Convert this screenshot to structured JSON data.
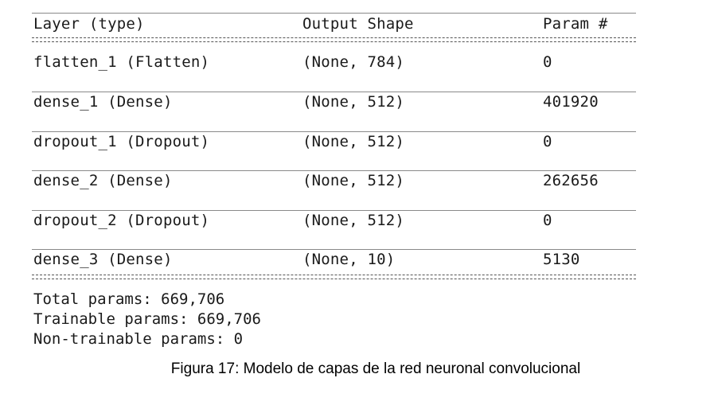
{
  "header": {
    "layer": "Layer (type)",
    "shape": "Output Shape",
    "params": "Param #"
  },
  "rows": [
    {
      "layer": "flatten_1 (Flatten)",
      "shape": "(None, 784)",
      "params": "0"
    },
    {
      "layer": "dense_1 (Dense)",
      "shape": "(None, 512)",
      "params": "401920"
    },
    {
      "layer": "dropout_1 (Dropout)",
      "shape": "(None, 512)",
      "params": "0"
    },
    {
      "layer": "dense_2 (Dense)",
      "shape": "(None, 512)",
      "params": "262656"
    },
    {
      "layer": "dropout_2 (Dropout)",
      "shape": "(None, 512)",
      "params": "0"
    },
    {
      "layer": "dense_3 (Dense)",
      "shape": "(None, 10)",
      "params": "5130"
    }
  ],
  "totals": {
    "total": "Total params: 669,706",
    "trainable": "Trainable params: 669,706",
    "non_trainable": "Non-trainable params: 0"
  },
  "caption": "Figura 17: Modelo de capas de la red neuronal convolucional"
}
